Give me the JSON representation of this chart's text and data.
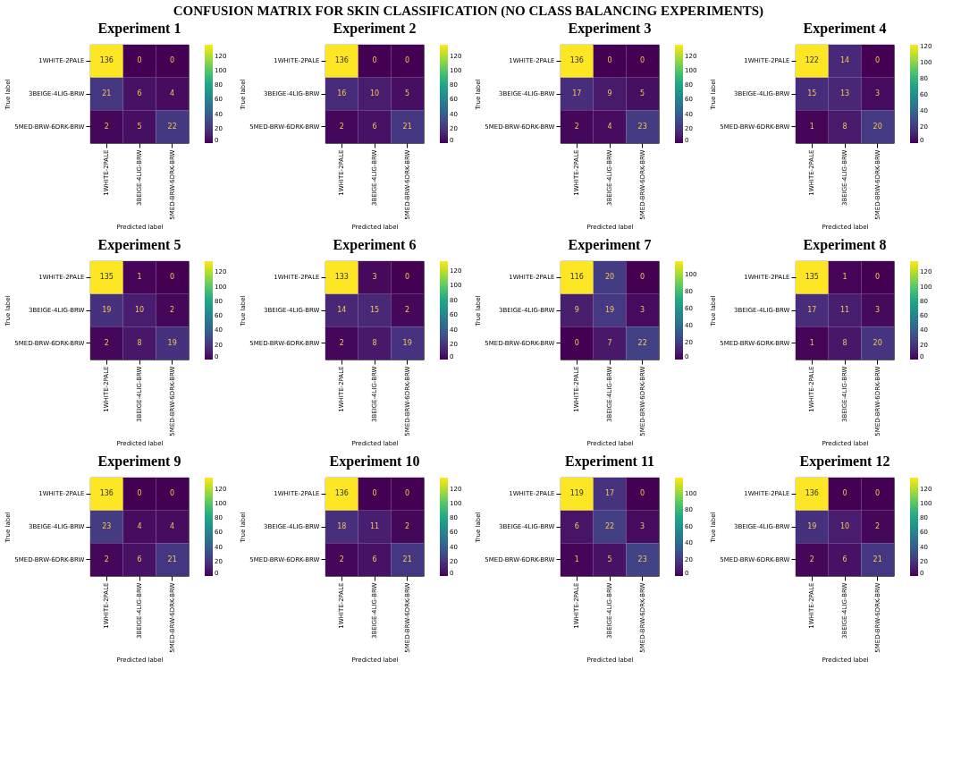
{
  "chart_data": [
    {
      "type": "heatmap",
      "title": "Experiment 1",
      "annotations": [
        "CONFUSION MATRIX FOR SKIN CLASSIFICATION (NO CLASS BALANCING EXPERIMENTS)"
      ],
      "xlabel": "Predicted label",
      "ylabel": "True label",
      "categories": [
        "1WHITE-2PALE",
        "3BEIGE-4LIG-BRW",
        "5MED-BRW-6DRK-BRW"
      ],
      "y_categories": [
        "1WHITE-2PALE",
        "3BEIGE-4LIG-BRW",
        "5MED-BRW-6DRK-BRW"
      ],
      "cells": [
        [
          136,
          0,
          0
        ],
        [
          21,
          6,
          4
        ],
        [
          2,
          5,
          22
        ]
      ],
      "clim": [
        0,
        136
      ],
      "cticks": [
        0,
        20,
        40,
        60,
        80,
        100,
        120
      ],
      "data_labels": true
    },
    {
      "type": "heatmap",
      "title": "Experiment 2",
      "xlabel": "Predicted label",
      "ylabel": "True label",
      "categories": [
        "1WHITE-2PALE",
        "3BEIGE-4LIG-BRW",
        "5MED-BRW-6DRK-BRW"
      ],
      "y_categories": [
        "1WHITE-2PALE",
        "3BEIGE-4LIG-BRW",
        "5MED-BRW-6DRK-BRW"
      ],
      "cells": [
        [
          136,
          0,
          0
        ],
        [
          16,
          10,
          5
        ],
        [
          2,
          6,
          21
        ]
      ],
      "clim": [
        0,
        136
      ],
      "cticks": [
        0,
        20,
        40,
        60,
        80,
        100,
        120
      ],
      "data_labels": true
    },
    {
      "type": "heatmap",
      "title": "Experiment 3",
      "xlabel": "Predicted label",
      "ylabel": "True label",
      "categories": [
        "1WHITE-2PALE",
        "3BEIGE-4LIG-BRW",
        "5MED-BRW-6DRK-BRW"
      ],
      "y_categories": [
        "1WHITE-2PALE",
        "3BEIGE-4LIG-BRW",
        "5MED-BRW-6DRK-BRW"
      ],
      "cells": [
        [
          136,
          0,
          0
        ],
        [
          17,
          9,
          5
        ],
        [
          2,
          4,
          23
        ]
      ],
      "clim": [
        0,
        136
      ],
      "cticks": [
        0,
        20,
        40,
        60,
        80,
        100,
        120
      ],
      "data_labels": true
    },
    {
      "type": "heatmap",
      "title": "Experiment 4",
      "xlabel": "Predicted label",
      "ylabel": "True label",
      "categories": [
        "1WHITE-2PALE",
        "3BEIGE-4LIG-BRW",
        "5MED-BRW-6DRK-BRW"
      ],
      "y_categories": [
        "1WHITE-2PALE",
        "3BEIGE-4LIG-BRW",
        "5MED-BRW-6DRK-BRW"
      ],
      "cells": [
        [
          122,
          14,
          0
        ],
        [
          15,
          13,
          3
        ],
        [
          1,
          8,
          20
        ]
      ],
      "clim": [
        0,
        122
      ],
      "cticks": [
        0,
        20,
        40,
        60,
        80,
        100,
        120
      ],
      "data_labels": true
    },
    {
      "type": "heatmap",
      "title": "Experiment 5",
      "xlabel": "Predicted label",
      "ylabel": "True label",
      "categories": [
        "1WHITE-2PALE",
        "3BEIGE-4LIG-BRW",
        "5MED-BRW-6DRK-BRW"
      ],
      "y_categories": [
        "1WHITE-2PALE",
        "3BEIGE-4LIG-BRW",
        "5MED-BRW-6DRK-BRW"
      ],
      "cells": [
        [
          135,
          1,
          0
        ],
        [
          19,
          10,
          2
        ],
        [
          2,
          8,
          19
        ]
      ],
      "clim": [
        0,
        135
      ],
      "cticks": [
        0,
        20,
        40,
        60,
        80,
        100,
        120
      ],
      "data_labels": true
    },
    {
      "type": "heatmap",
      "title": "Experiment 6",
      "xlabel": "Predicted label",
      "ylabel": "True label",
      "categories": [
        "1WHITE-2PALE",
        "3BEIGE-4LIG-BRW",
        "5MED-BRW-6DRK-BRW"
      ],
      "y_categories": [
        "1WHITE-2PALE",
        "3BEIGE-4LIG-BRW",
        "5MED-BRW-6DRK-BRW"
      ],
      "cells": [
        [
          133,
          3,
          0
        ],
        [
          14,
          15,
          2
        ],
        [
          2,
          8,
          19
        ]
      ],
      "clim": [
        0,
        133
      ],
      "cticks": [
        0,
        20,
        40,
        60,
        80,
        100,
        120
      ],
      "data_labels": true
    },
    {
      "type": "heatmap",
      "title": "Experiment 7",
      "xlabel": "Predicted label",
      "ylabel": "True label",
      "categories": [
        "1WHITE-2PALE",
        "3BEIGE-4LIG-BRW",
        "5MED-BRW-6DRK-BRW"
      ],
      "y_categories": [
        "1WHITE-2PALE",
        "3BEIGE-4LIG-BRW",
        "5MED-BRW-6DRK-BRW"
      ],
      "cells": [
        [
          116,
          20,
          0
        ],
        [
          9,
          19,
          3
        ],
        [
          0,
          7,
          22
        ]
      ],
      "clim": [
        0,
        116
      ],
      "cticks": [
        0,
        20,
        40,
        60,
        80,
        100
      ],
      "data_labels": true
    },
    {
      "type": "heatmap",
      "title": "Experiment 8",
      "xlabel": "Predicted label",
      "ylabel": "True label",
      "categories": [
        "1WHITE-2PALE",
        "3BEIGE-4LIG-BRW",
        "5MED-BRW-6DRK-BRW"
      ],
      "y_categories": [
        "1WHITE-2PALE",
        "3BEIGE-4LIG-BRW",
        "5MED-BRW-6DRK-BRW"
      ],
      "cells": [
        [
          135,
          1,
          0
        ],
        [
          17,
          11,
          3
        ],
        [
          1,
          8,
          20
        ]
      ],
      "clim": [
        0,
        135
      ],
      "cticks": [
        0,
        20,
        40,
        60,
        80,
        100,
        120
      ],
      "data_labels": true
    },
    {
      "type": "heatmap",
      "title": "Experiment 9",
      "xlabel": "Predicted label",
      "ylabel": "True label",
      "categories": [
        "1WHITE-2PALE",
        "3BEIGE-4LIG-BRW",
        "5MED-BRW-6DRK-BRW"
      ],
      "y_categories": [
        "1WHITE-2PALE",
        "3BEIGE-4LIG-BRW",
        "5MED-BRW-6DRK-BRW"
      ],
      "cells": [
        [
          136,
          0,
          0
        ],
        [
          23,
          4,
          4
        ],
        [
          2,
          6,
          21
        ]
      ],
      "clim": [
        0,
        136
      ],
      "cticks": [
        0,
        20,
        40,
        60,
        80,
        100,
        120
      ],
      "data_labels": true
    },
    {
      "type": "heatmap",
      "title": "Experiment 10",
      "xlabel": "Predicted label",
      "ylabel": "True label",
      "categories": [
        "1WHITE-2PALE",
        "3BEIGE-4LIG-BRW",
        "5MED-BRW-6DRK-BRW"
      ],
      "y_categories": [
        "1WHITE-2PALE",
        "3BEIGE-4LIG-BRW",
        "5MED-BRW-6DRK-BRW"
      ],
      "cells": [
        [
          136,
          0,
          0
        ],
        [
          18,
          11,
          2
        ],
        [
          2,
          6,
          21
        ]
      ],
      "clim": [
        0,
        136
      ],
      "cticks": [
        0,
        20,
        40,
        60,
        80,
        100,
        120
      ],
      "data_labels": true
    },
    {
      "type": "heatmap",
      "title": "Experiment 11",
      "xlabel": "Predicted label",
      "ylabel": "True label",
      "categories": [
        "1WHITE-2PALE",
        "3BEIGE-4LIG-BRW",
        "5MED-BRW-6DRK-BRW"
      ],
      "y_categories": [
        "1WHITE-2PALE",
        "3BEIGE-4LIG-BRW",
        "5MED-BRW-6DRK-BRW"
      ],
      "cells": [
        [
          119,
          17,
          0
        ],
        [
          6,
          22,
          3
        ],
        [
          1,
          5,
          23
        ]
      ],
      "clim": [
        0,
        119
      ],
      "cticks": [
        0,
        20,
        40,
        60,
        80,
        100
      ],
      "data_labels": true
    },
    {
      "type": "heatmap",
      "title": "Experiment 12",
      "xlabel": "Predicted label",
      "ylabel": "True label",
      "categories": [
        "1WHITE-2PALE",
        "3BEIGE-4LIG-BRW",
        "5MED-BRW-6DRK-BRW"
      ],
      "y_categories": [
        "1WHITE-2PALE",
        "3BEIGE-4LIG-BRW",
        "5MED-BRW-6DRK-BRW"
      ],
      "cells": [
        [
          136,
          0,
          0
        ],
        [
          19,
          10,
          2
        ],
        [
          2,
          6,
          21
        ]
      ],
      "clim": [
        0,
        136
      ],
      "cticks": [
        0,
        20,
        40,
        60,
        80,
        100,
        120
      ],
      "data_labels": true
    }
  ]
}
